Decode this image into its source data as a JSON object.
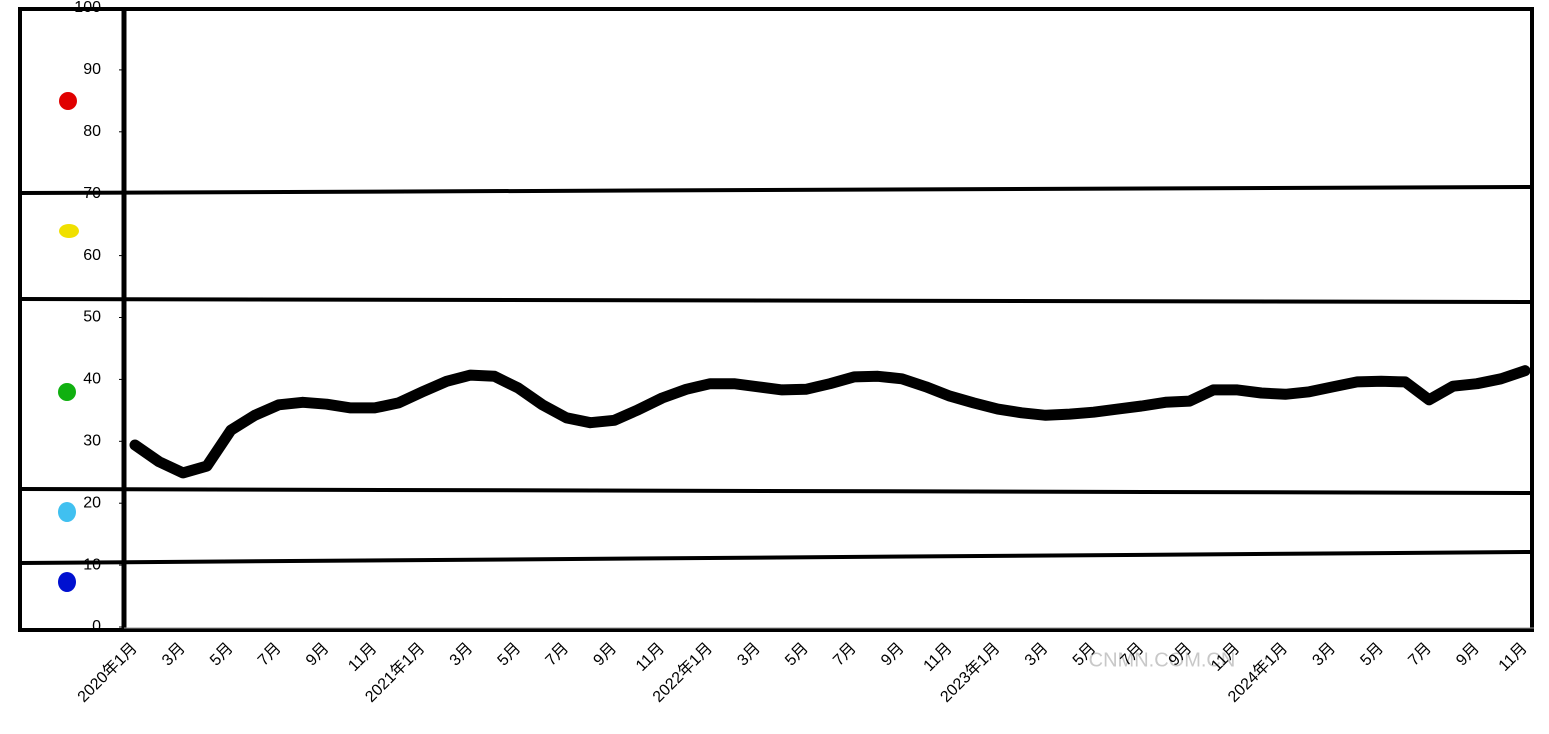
{
  "chart_data": {
    "type": "line",
    "categories": [
      "2020年1月",
      null,
      "3月",
      null,
      "5月",
      null,
      "7月",
      null,
      "9月",
      null,
      "11月",
      null,
      "2021年1月",
      null,
      "3月",
      null,
      "5月",
      null,
      "7月",
      null,
      "9月",
      null,
      "11月",
      null,
      "2022年1月",
      null,
      "3月",
      null,
      "5月",
      null,
      "7月",
      null,
      "9月",
      null,
      "11月",
      null,
      "2023年1月",
      null,
      "3月",
      null,
      "5月",
      null,
      "7月",
      null,
      "9月",
      null,
      "11月",
      null,
      "2024年1月",
      null,
      "3月",
      null,
      "5月",
      null,
      "7月",
      null,
      "9月",
      null,
      "11月"
    ],
    "values": [
      29.4,
      26.7,
      24.9,
      26.0,
      31.8,
      34.2,
      35.9,
      36.3,
      36.0,
      35.4,
      35.4,
      36.2,
      38.0,
      39.7,
      40.7,
      40.5,
      38.6,
      35.9,
      33.8,
      33.0,
      33.4,
      35.1,
      37.0,
      38.4,
      39.3,
      39.3,
      38.8,
      38.3,
      38.4,
      39.3,
      40.4,
      40.5,
      40.1,
      38.8,
      37.3,
      36.2,
      35.2,
      34.6,
      34.2,
      34.4,
      34.7,
      35.2,
      35.7,
      36.3,
      36.5,
      38.3,
      38.3,
      37.8,
      37.6,
      38.0,
      38.8,
      39.6,
      39.7,
      39.6,
      36.7,
      38.9,
      39.3,
      40.1,
      41.4
    ],
    "color": "#000000",
    "ylim": [
      0,
      100
    ],
    "yticks": [
      0,
      10,
      20,
      30,
      40,
      50,
      60,
      70,
      80,
      90,
      100
    ],
    "grid": false,
    "watermark": "CNMN.COM.CN"
  }
}
